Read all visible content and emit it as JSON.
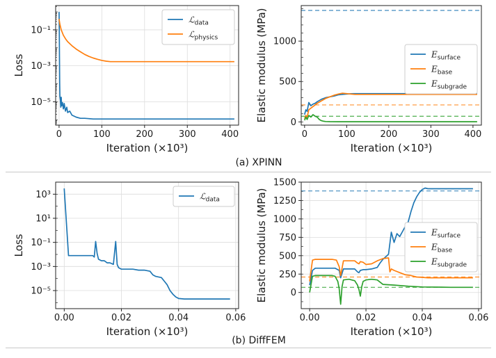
{
  "figure": {
    "caption_a": "(a) XPINN",
    "caption_b": "(b) DiffFEM"
  },
  "colors": {
    "blue": "#1f77b4",
    "orange": "#ff7f0e",
    "green": "#2ca02c"
  },
  "chart_data": [
    {
      "type": "line",
      "panel": "a-left",
      "xlabel": "Iteration (×10³)",
      "ylabel": "Loss",
      "xlim": [
        -8,
        420
      ],
      "ylim_log10": [
        -6.3,
        0.35
      ],
      "log_y": true,
      "xticks": [
        0,
        100,
        200,
        300,
        400
      ],
      "yticks_log10": [
        -5,
        -3,
        -1
      ],
      "grid": true,
      "legend_position": "top-right",
      "series": [
        {
          "name": "ℒ",
          "sub": "data",
          "color": "#1f77b4",
          "x": [
            0,
            0.5,
            1,
            1.5,
            2,
            3,
            4,
            5,
            6,
            8,
            10,
            12,
            15,
            18,
            20,
            25,
            30,
            40,
            50,
            60,
            80,
            100,
            150,
            200,
            300,
            410
          ],
          "y": [
            1.0,
            0.12,
            0.003,
            0.0001,
            2e-05,
            1.2e-05,
            5e-06,
            1.8e-05,
            6e-06,
            9e-06,
            4e-06,
            8e-06,
            3e-06,
            5e-06,
            2.5e-06,
            3e-06,
            1.8e-06,
            1.4e-06,
            1.2e-06,
            1.2e-06,
            1.1e-06,
            1.1e-06,
            1.1e-06,
            1.1e-06,
            1.1e-06,
            1.1e-06
          ]
        },
        {
          "name": "ℒ",
          "sub": "physics",
          "color": "#ff7f0e",
          "x": [
            0,
            2,
            5,
            10,
            15,
            20,
            30,
            40,
            50,
            60,
            70,
            80,
            90,
            100,
            110,
            120,
            150,
            200,
            300,
            410
          ],
          "y": [
            0.4,
            0.2,
            0.1,
            0.05,
            0.032,
            0.022,
            0.013,
            0.0085,
            0.006,
            0.0043,
            0.0033,
            0.0027,
            0.0023,
            0.002,
            0.0018,
            0.0017,
            0.0017,
            0.0017,
            0.0017,
            0.0017
          ]
        }
      ]
    },
    {
      "type": "line",
      "panel": "a-right",
      "xlabel": "Iteration (×10³)",
      "ylabel": "Elastic modulus (MPa)",
      "xlim": [
        -8,
        420
      ],
      "ylim": [
        -40,
        1440
      ],
      "xticks": [
        0,
        100,
        200,
        300,
        400
      ],
      "yticks": [
        0,
        500,
        1000
      ],
      "grid": false,
      "legend_position": "center-right",
      "reference_lines": [
        {
          "y": 1380,
          "color": "#1f77b4"
        },
        {
          "y": 210,
          "color": "#ff7f0e"
        },
        {
          "y": 70,
          "color": "#2ca02c"
        }
      ],
      "series": [
        {
          "name": "E",
          "sub": "surface",
          "color": "#1f77b4",
          "x": [
            0,
            3,
            6,
            10,
            15,
            20,
            25,
            30,
            40,
            50,
            60,
            70,
            80,
            90,
            100,
            110,
            120,
            200,
            300,
            410
          ],
          "y": [
            90,
            150,
            130,
            240,
            200,
            220,
            230,
            250,
            280,
            300,
            310,
            320,
            335,
            340,
            345,
            348,
            350,
            350,
            350,
            350
          ]
        },
        {
          "name": "E",
          "sub": "base",
          "color": "#ff7f0e",
          "x": [
            0,
            3,
            6,
            10,
            15,
            20,
            25,
            30,
            40,
            50,
            60,
            70,
            80,
            90,
            100,
            110,
            120,
            200,
            300,
            410
          ],
          "y": [
            40,
            80,
            60,
            150,
            170,
            190,
            210,
            230,
            260,
            290,
            310,
            330,
            345,
            355,
            350,
            345,
            340,
            340,
            340,
            340
          ]
        },
        {
          "name": "E",
          "sub": "subgrade",
          "color": "#2ca02c",
          "x": [
            0,
            3,
            6,
            10,
            15,
            20,
            25,
            30,
            35,
            40,
            45,
            50,
            60,
            80,
            100,
            120,
            200,
            300,
            410
          ],
          "y": [
            20,
            60,
            30,
            80,
            60,
            90,
            70,
            60,
            30,
            15,
            8,
            5,
            3,
            2,
            2,
            2,
            2,
            2,
            2
          ]
        }
      ]
    },
    {
      "type": "line",
      "panel": "b-left",
      "xlabel": "Iteration (×10³)",
      "ylabel": "Loss",
      "xlim": [
        -0.003,
        0.061
      ],
      "ylim_log10": [
        -6.5,
        4.0
      ],
      "log_y": true,
      "xticks": [
        0.0,
        0.02,
        0.04,
        0.06
      ],
      "yticks_log10": [
        -5,
        -3,
        -1,
        1,
        3
      ],
      "grid": true,
      "legend_position": "top-right",
      "series": [
        {
          "name": "ℒ",
          "sub": "data",
          "color": "#1f77b4",
          "x": [
            0,
            0.0015,
            0.003,
            0.01,
            0.0105,
            0.011,
            0.0115,
            0.012,
            0.013,
            0.014,
            0.015,
            0.016,
            0.0172,
            0.018,
            0.0185,
            0.019,
            0.02,
            0.022,
            0.024,
            0.026,
            0.028,
            0.03,
            0.031,
            0.032,
            0.034,
            0.035,
            0.036,
            0.037,
            0.038,
            0.039,
            0.04,
            0.042,
            0.05,
            0.058
          ],
          "y": [
            3000,
            0.008,
            0.008,
            0.008,
            0.006,
            0.12,
            0.012,
            0.004,
            0.003,
            0.003,
            0.002,
            0.002,
            0.0015,
            0.12,
            0.0015,
            0.0008,
            0.0006,
            0.0006,
            0.0006,
            0.0005,
            0.0005,
            0.0004,
            0.0002,
            0.00015,
            0.00012,
            6e-05,
            3e-05,
            1e-05,
            5e-06,
            3e-06,
            2.2e-06,
            2e-06,
            2e-06,
            2e-06
          ]
        }
      ]
    },
    {
      "type": "line",
      "panel": "b-right",
      "xlabel": "Iteration (×10³)",
      "ylabel": "Elastic modulus (MPa)",
      "xlim": [
        -0.003,
        0.061
      ],
      "ylim": [
        -220,
        1500
      ],
      "xticks": [
        0.0,
        0.02,
        0.04,
        0.06
      ],
      "yticks": [
        0,
        250,
        500,
        750,
        1000,
        1250,
        1500
      ],
      "grid": true,
      "legend_position": "center-right",
      "reference_lines": [
        {
          "y": 1380,
          "color": "#1f77b4"
        },
        {
          "y": 210,
          "color": "#ff7f0e"
        },
        {
          "y": 70,
          "color": "#2ca02c"
        }
      ],
      "series": [
        {
          "name": "E",
          "sub": "surface",
          "color": "#1f77b4",
          "x": [
            0,
            0.001,
            0.002,
            0.008,
            0.009,
            0.0105,
            0.011,
            0.012,
            0.016,
            0.017,
            0.0175,
            0.018,
            0.019,
            0.02,
            0.022,
            0.024,
            0.025,
            0.026,
            0.028,
            0.029,
            0.03,
            0.031,
            0.032,
            0.033,
            0.034,
            0.035,
            0.036,
            0.037,
            0.038,
            0.039,
            0.04,
            0.041,
            0.042,
            0.05,
            0.058
          ],
          "y": [
            100,
            300,
            330,
            330,
            330,
            300,
            200,
            320,
            320,
            280,
            270,
            300,
            310,
            310,
            320,
            340,
            400,
            450,
            520,
            820,
            680,
            800,
            760,
            830,
            900,
            960,
            1100,
            1220,
            1300,
            1360,
            1400,
            1420,
            1410,
            1410,
            1410
          ]
        },
        {
          "name": "E",
          "sub": "base",
          "color": "#ff7f0e",
          "x": [
            0,
            0.001,
            0.002,
            0.008,
            0.0095,
            0.0105,
            0.011,
            0.012,
            0.016,
            0.017,
            0.0175,
            0.018,
            0.019,
            0.02,
            0.022,
            0.024,
            0.026,
            0.028,
            0.0285,
            0.029,
            0.03,
            0.032,
            0.034,
            0.036,
            0.038,
            0.04,
            0.042,
            0.05,
            0.058
          ],
          "y": [
            150,
            440,
            450,
            450,
            440,
            350,
            230,
            430,
            430,
            400,
            390,
            420,
            410,
            380,
            390,
            430,
            460,
            470,
            280,
            320,
            300,
            270,
            240,
            230,
            210,
            205,
            200,
            200,
            200
          ]
        },
        {
          "name": "E",
          "sub": "subgrade",
          "color": "#2ca02c",
          "x": [
            0,
            0.001,
            0.002,
            0.008,
            0.009,
            0.01,
            0.0105,
            0.011,
            0.0115,
            0.012,
            0.014,
            0.016,
            0.017,
            0.0175,
            0.018,
            0.0185,
            0.019,
            0.02,
            0.022,
            0.024,
            0.026,
            0.03,
            0.035,
            0.04,
            0.05,
            0.058
          ],
          "y": [
            0,
            220,
            230,
            230,
            220,
            150,
            50,
            -160,
            80,
            170,
            180,
            160,
            100,
            40,
            -50,
            80,
            150,
            170,
            180,
            170,
            110,
            100,
            85,
            75,
            70,
            70
          ]
        }
      ]
    }
  ]
}
